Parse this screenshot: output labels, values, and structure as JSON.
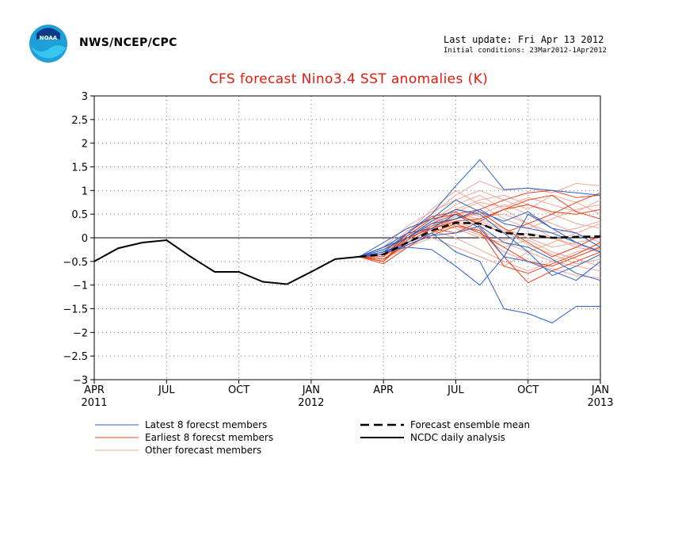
{
  "header": {
    "org": "NWS/NCEP/CPC",
    "last_update": "Last update: Fri Apr 13 2012",
    "initial_conditions": "Initial conditions: 23Mar2012-1Apr2012",
    "logo_text": "NOAA"
  },
  "chart_data": {
    "type": "line",
    "title": "CFS forecast Nino3.4 SST anomalies (K)",
    "ylim": [
      -3,
      3
    ],
    "y_ticks": [
      "3",
      "2.5",
      "2",
      "1.5",
      "1",
      "0.5",
      "0",
      "-0.5",
      "-1",
      "-1.5",
      "-2",
      "-2.5",
      "-3"
    ],
    "xlim": [
      0,
      21
    ],
    "x_ticks": [
      {
        "label": "APR",
        "year": "2011",
        "x": 0
      },
      {
        "label": "JUL",
        "year": "",
        "x": 3
      },
      {
        "label": "OCT",
        "year": "",
        "x": 6
      },
      {
        "label": "JAN",
        "year": "2012",
        "x": 9
      },
      {
        "label": "APR",
        "year": "",
        "x": 12
      },
      {
        "label": "JUL",
        "year": "",
        "x": 15
      },
      {
        "label": "OCT",
        "year": "",
        "x": 18
      },
      {
        "label": "JAN",
        "year": "2013",
        "x": 21
      }
    ],
    "grid": true,
    "analysis": {
      "name": "NCDC daily analysis",
      "color": "#000000",
      "x": [
        0,
        1,
        2,
        3,
        4,
        5,
        6,
        7,
        8,
        9,
        10,
        11
      ],
      "y": [
        -0.5,
        -0.22,
        -0.1,
        -0.05,
        -0.4,
        -0.72,
        -0.72,
        -0.93,
        -0.98,
        -0.72,
        -0.45,
        -0.4
      ]
    },
    "ensemble_mean": {
      "name": "Forecast ensemble mean",
      "color": "#000000",
      "x": [
        11,
        12,
        13,
        14,
        15,
        16,
        17,
        18,
        19,
        20,
        21
      ],
      "y": [
        -0.4,
        -0.35,
        -0.1,
        0.15,
        0.32,
        0.3,
        0.1,
        0.07,
        0.0,
        0.02,
        0.03
      ]
    },
    "latest_members": {
      "name": "Latest 8 forecst members",
      "color": "#2a62c9",
      "x": [
        11,
        12,
        13,
        14,
        15,
        16,
        17,
        18,
        19,
        20,
        21
      ],
      "series": [
        [
          -0.4,
          -0.2,
          0.1,
          0.5,
          1.1,
          1.65,
          1.02,
          1.05,
          1.0,
          0.95,
          0.9
        ],
        [
          -0.4,
          -0.3,
          -0.2,
          -0.25,
          -0.6,
          -1.0,
          -0.4,
          0.5,
          0.2,
          0.1,
          -0.2
        ],
        [
          -0.4,
          -0.3,
          -0.1,
          0.1,
          -0.3,
          -0.5,
          -1.5,
          -1.6,
          -1.8,
          -1.45,
          -1.45
        ],
        [
          -0.4,
          -0.2,
          0.0,
          0.3,
          0.4,
          0.6,
          0.3,
          0.2,
          0.1,
          -0.1,
          -0.3
        ],
        [
          -0.4,
          -0.3,
          0.1,
          0.2,
          0.5,
          0.2,
          -0.4,
          -0.5,
          -0.7,
          -0.9,
          -0.5
        ],
        [
          -0.4,
          -0.25,
          0.0,
          0.35,
          0.6,
          0.5,
          0.1,
          -0.3,
          -0.8,
          -0.6,
          -0.35
        ],
        [
          -0.4,
          -0.1,
          0.2,
          0.4,
          0.8,
          0.55,
          0.35,
          0.55,
          0.2,
          -0.1,
          -0.3
        ],
        [
          -0.4,
          -0.35,
          -0.15,
          0.05,
          0.1,
          0.25,
          -0.1,
          -0.2,
          -0.45,
          -0.75,
          -0.9
        ]
      ]
    },
    "earliest_members": {
      "name": "Earliest 8 forecst members",
      "color": "#e8451f",
      "x": [
        11,
        12,
        13,
        14,
        15,
        16,
        17,
        18,
        19,
        20,
        21
      ],
      "series": [
        [
          -0.4,
          -0.5,
          0.0,
          0.3,
          0.5,
          0.6,
          0.8,
          0.95,
          1.0,
          0.85,
          0.9
        ],
        [
          -0.4,
          -0.45,
          -0.1,
          0.2,
          0.35,
          0.4,
          0.6,
          0.7,
          0.55,
          0.5,
          0.6
        ],
        [
          -0.4,
          -0.55,
          -0.2,
          0.1,
          0.3,
          0.1,
          -0.2,
          -0.5,
          -0.6,
          -0.4,
          -0.2
        ],
        [
          -0.4,
          -0.4,
          0.1,
          0.45,
          0.55,
          0.25,
          -0.4,
          -0.95,
          -0.7,
          -0.5,
          -0.3
        ],
        [
          -0.4,
          -0.5,
          -0.05,
          0.25,
          0.4,
          0.55,
          0.2,
          -0.1,
          -0.4,
          -0.2,
          0.05
        ],
        [
          -0.4,
          -0.35,
          0.0,
          0.2,
          0.1,
          0.35,
          0.6,
          0.8,
          0.9,
          0.55,
          0.4
        ],
        [
          -0.4,
          -0.45,
          -0.15,
          0.05,
          0.25,
          0.15,
          -0.6,
          -0.75,
          -0.55,
          -0.35,
          -0.1
        ],
        [
          -0.4,
          -0.5,
          0.05,
          0.4,
          0.5,
          0.3,
          0.1,
          0.3,
          0.5,
          0.75,
          0.95
        ]
      ]
    },
    "other_members": {
      "name": "Other forecast members",
      "color": "#f0a796",
      "x": [
        11,
        12,
        13,
        14,
        15,
        16,
        17,
        18,
        19,
        20,
        21
      ],
      "series": [
        [
          -0.4,
          -0.3,
          0.1,
          0.5,
          0.9,
          1.2,
          1.0,
          1.05,
          0.95,
          1.15,
          1.1
        ],
        [
          -0.4,
          -0.35,
          0.0,
          0.3,
          0.6,
          0.8,
          0.9,
          0.7,
          0.5,
          0.3,
          0.2
        ],
        [
          -0.4,
          -0.4,
          -0.1,
          0.2,
          0.3,
          0.1,
          -0.3,
          -0.5,
          -0.65,
          -0.8,
          -0.85
        ],
        [
          -0.4,
          -0.3,
          0.05,
          0.35,
          0.7,
          0.9,
          0.6,
          0.3,
          0.0,
          -0.2,
          -0.3
        ],
        [
          -0.4,
          -0.25,
          0.15,
          0.4,
          0.5,
          0.4,
          0.2,
          0.0,
          -0.2,
          -0.1,
          0.0
        ],
        [
          -0.4,
          -0.45,
          -0.2,
          0.0,
          -0.2,
          -0.4,
          -0.6,
          -0.3,
          -0.1,
          0.1,
          0.3
        ],
        [
          -0.4,
          -0.35,
          0.1,
          0.6,
          1.0,
          0.7,
          0.4,
          0.2,
          0.4,
          0.6,
          0.7
        ],
        [
          -0.4,
          -0.3,
          0.0,
          0.2,
          0.4,
          0.5,
          0.7,
          0.5,
          0.3,
          0.1,
          -0.1
        ],
        [
          -0.4,
          -0.4,
          -0.05,
          0.3,
          0.2,
          0.0,
          -0.1,
          -0.3,
          -0.5,
          -0.6,
          -0.7
        ],
        [
          -0.4,
          -0.2,
          0.25,
          0.55,
          0.8,
          1.0,
          0.8,
          0.6,
          0.9,
          0.75,
          0.5
        ],
        [
          -0.4,
          -0.35,
          0.05,
          0.25,
          0.45,
          0.35,
          0.15,
          -0.15,
          -0.35,
          -0.55,
          -0.45
        ],
        [
          -0.4,
          -0.3,
          0.1,
          0.15,
          0.0,
          -0.25,
          -0.5,
          -0.7,
          -0.5,
          -0.3,
          -0.2
        ],
        [
          -0.4,
          -0.4,
          0.0,
          0.35,
          0.6,
          0.45,
          0.5,
          0.3,
          0.1,
          0.2,
          0.35
        ],
        [
          -0.4,
          -0.25,
          0.05,
          0.2,
          0.35,
          0.15,
          -0.05,
          0.1,
          0.0,
          -0.15,
          -0.25
        ],
        [
          -0.4,
          -0.35,
          -0.15,
          0.1,
          0.55,
          0.75,
          0.65,
          0.85,
          0.7,
          0.55,
          0.8
        ],
        [
          -0.4,
          -0.3,
          0.1,
          0.45,
          0.25,
          0.05,
          -0.2,
          -0.05,
          -0.3,
          -0.45,
          -0.6
        ]
      ]
    },
    "legend": [
      {
        "label": "Latest 8 forecst members",
        "color": "#2a62c9",
        "style": "solid"
      },
      {
        "label": "Earliest 8 forecst members",
        "color": "#e8451f",
        "style": "solid"
      },
      {
        "label": "Other forecast members",
        "color": "#f0a796",
        "style": "solid"
      },
      {
        "label": "Forecast ensemble mean",
        "color": "#000000",
        "style": "dashed"
      },
      {
        "label": "NCDC daily analysis",
        "color": "#000000",
        "style": "solid"
      }
    ]
  }
}
